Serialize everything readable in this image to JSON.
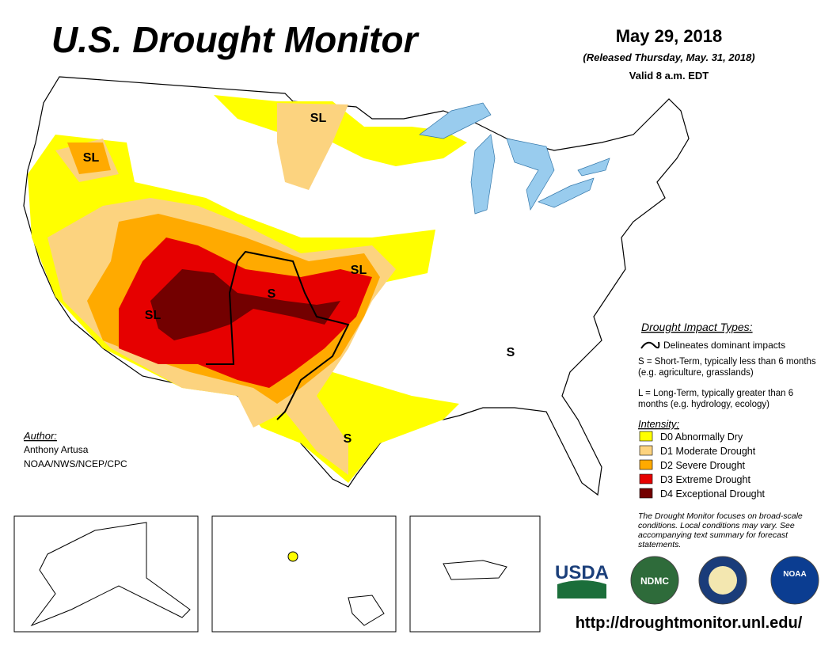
{
  "header": {
    "title": "U.S. Drought Monitor",
    "date": "May 29, 2018",
    "released": "(Released Thursday, May. 31, 2018)",
    "valid": "Valid 8 a.m. EDT"
  },
  "map": {
    "labels": [
      "SL",
      "SL",
      "SL",
      "SL",
      "S",
      "S",
      "S"
    ]
  },
  "impact": {
    "title": "Drought Impact Types:",
    "line": "Delineates dominant impacts",
    "short": "S = Short-Term, typically less than 6 months (e.g. agriculture, grasslands)",
    "long": "L = Long-Term, typically greater than 6 months (e.g. hydrology, ecology)"
  },
  "intensity": {
    "title": "Intensity:",
    "levels": [
      {
        "label": "D0 Abnormally Dry",
        "color": "#ffff00"
      },
      {
        "label": "D1 Moderate Drought",
        "color": "#fcd37f"
      },
      {
        "label": "D2 Severe Drought",
        "color": "#ffaa00"
      },
      {
        "label": "D3 Extreme Drought",
        "color": "#e60000"
      },
      {
        "label": "D4 Exceptional Drought",
        "color": "#730000"
      }
    ]
  },
  "author": {
    "title": "Author:",
    "name": "Anthony Artusa",
    "org": "NOAA/NWS/NCEP/CPC"
  },
  "note": "The Drought Monitor focuses on broad-scale conditions. Local conditions may vary. See accompanying text summary for forecast statements.",
  "logos": [
    "USDA",
    "NDMC",
    "NOAA"
  ],
  "url": "http://droughtmonitor.unl.edu/"
}
